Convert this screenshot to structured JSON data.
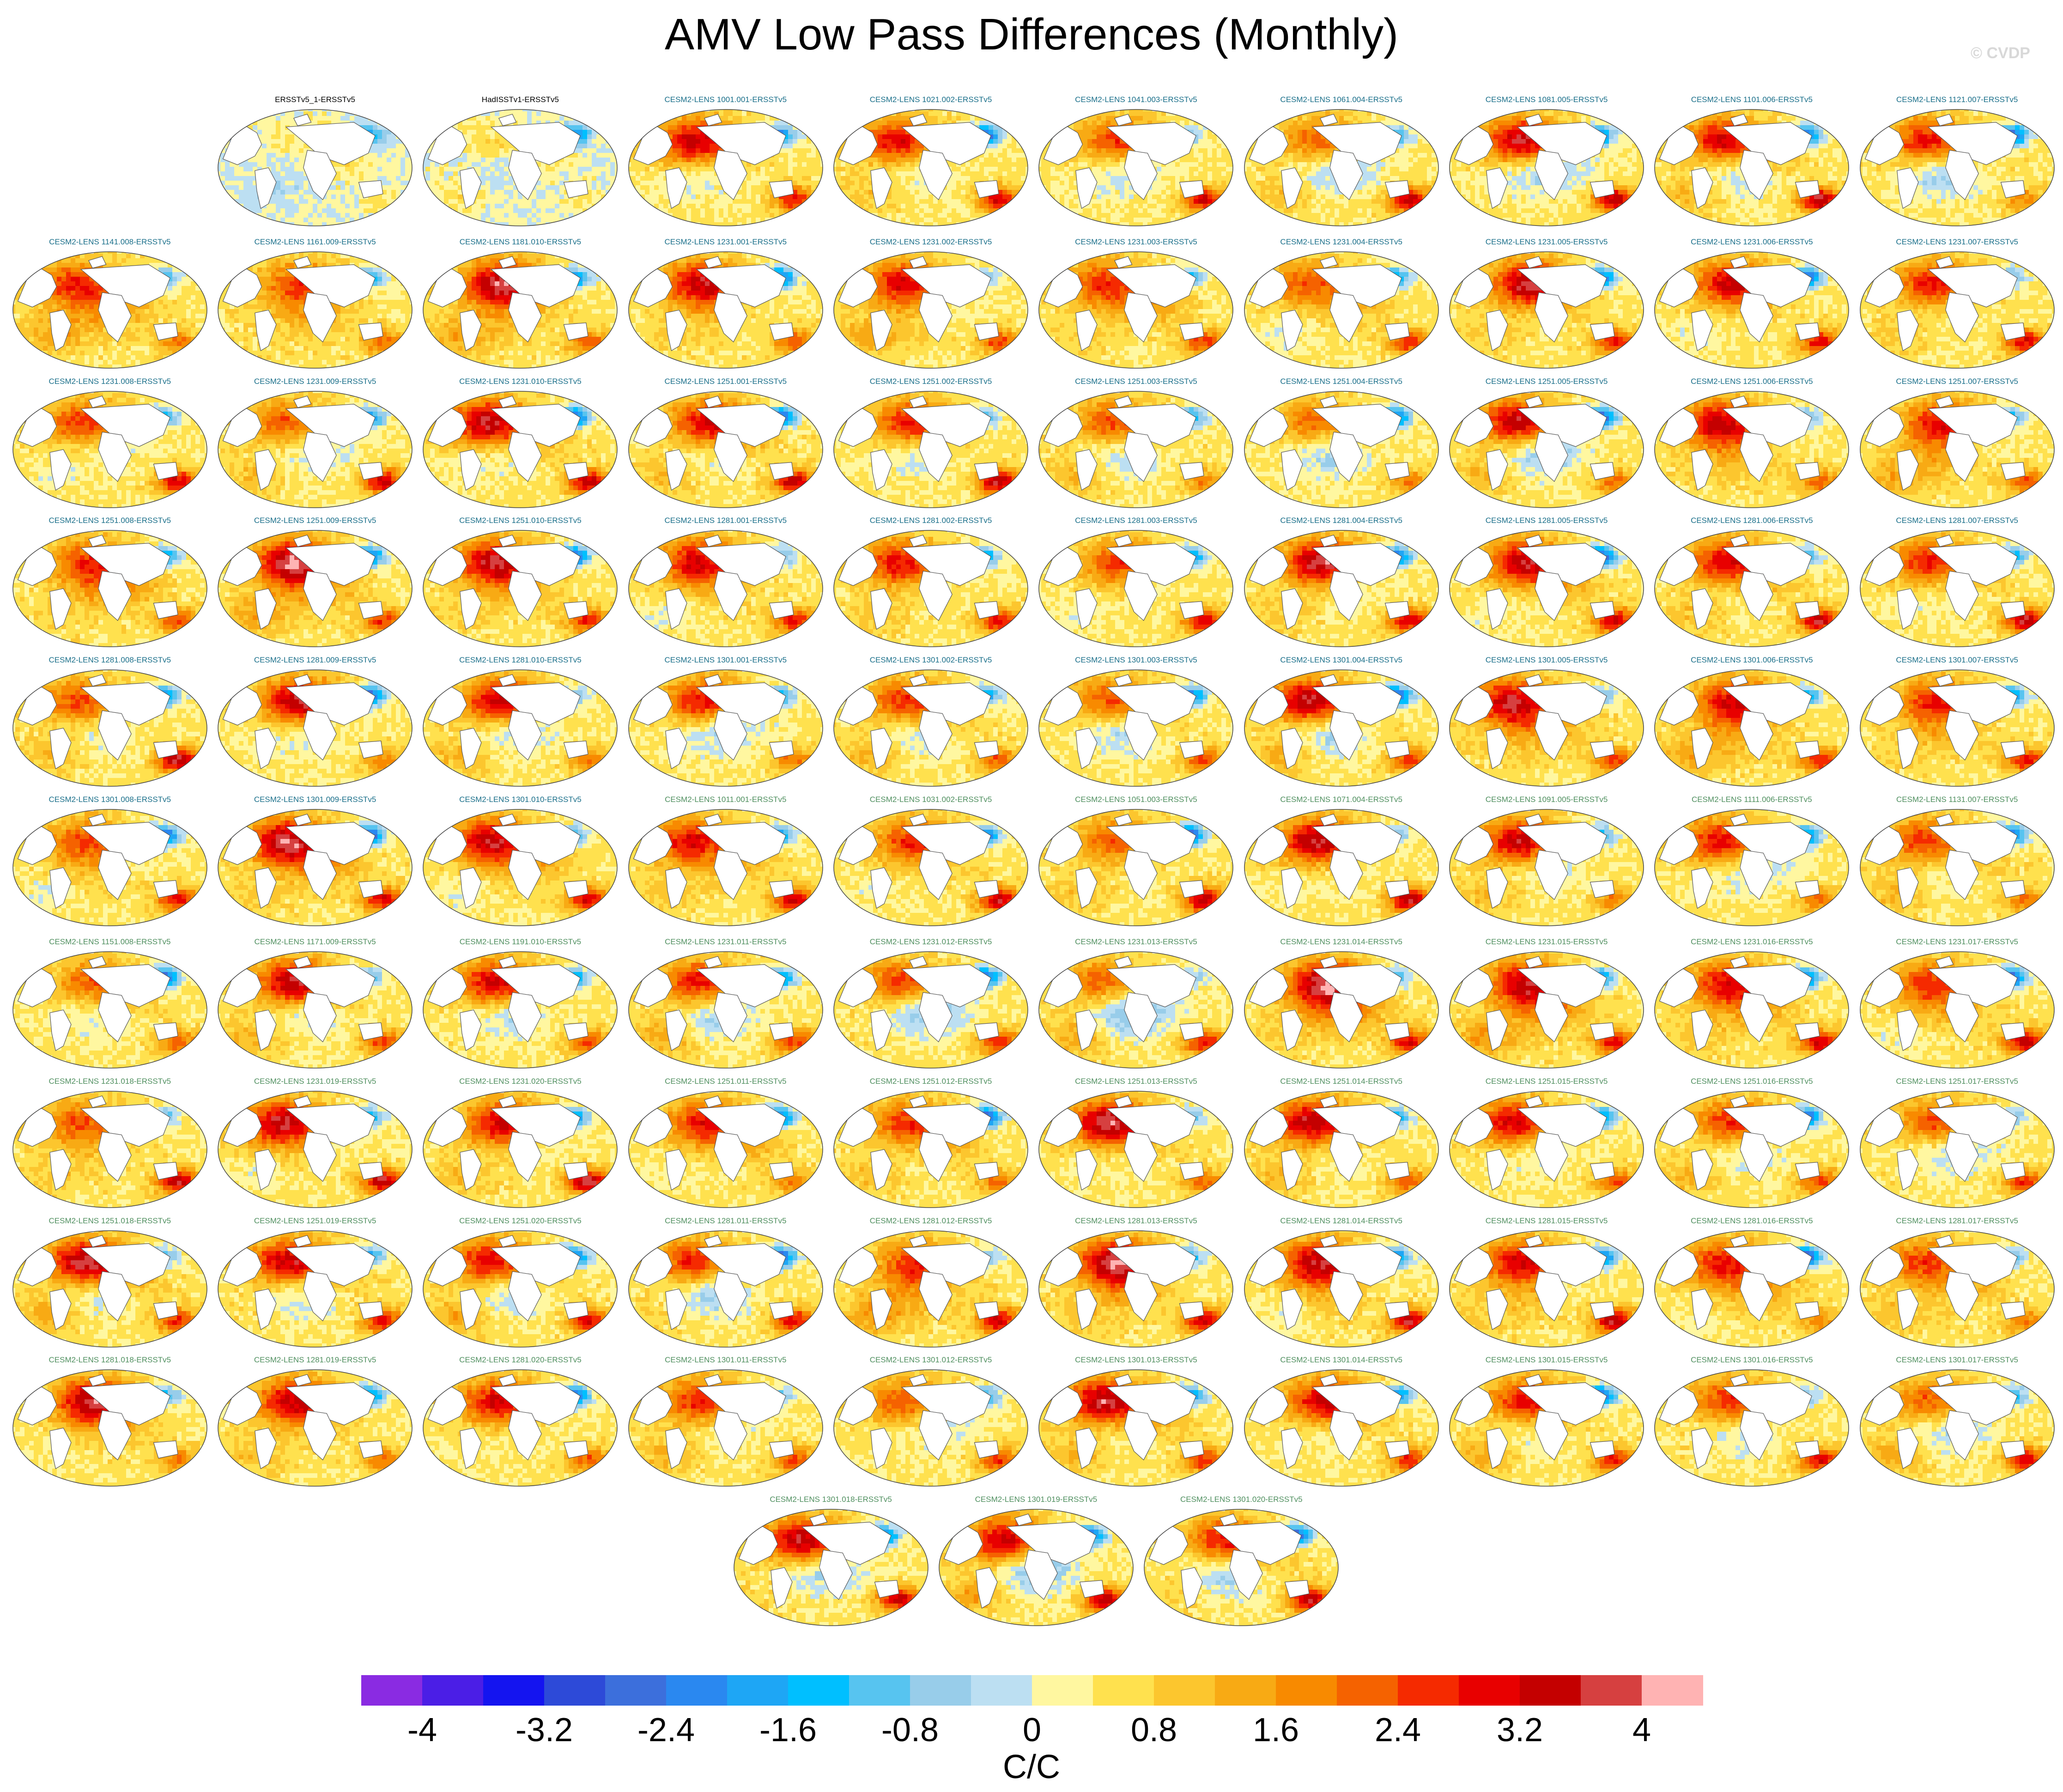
{
  "title": "AMV Low Pass Differences (Monthly)",
  "watermark": "© CVDP",
  "chart_data": {
    "type": "heatmap",
    "title": "AMV Low Pass Differences (Monthly)",
    "projection": "robinson",
    "label_colors": {
      "observation": "#000000",
      "cesm2_lens_set_a": "#1a6f8a",
      "cesm2_lens_set_b": "#4f8f5f"
    },
    "panels": [
      {
        "label": "ERSSTv5_1-ERSSTv5",
        "group": "observation"
      },
      {
        "label": "HadISSTv1-ERSSTv5",
        "group": "observation"
      },
      {
        "label": "CESM2-LENS 1001.001-ERSSTv5",
        "group": "cesm2_lens_set_a"
      },
      {
        "label": "CESM2-LENS 1021.002-ERSSTv5",
        "group": "cesm2_lens_set_a"
      },
      {
        "label": "CESM2-LENS 1041.003-ERSSTv5",
        "group": "cesm2_lens_set_a"
      },
      {
        "label": "CESM2-LENS 1061.004-ERSSTv5",
        "group": "cesm2_lens_set_a"
      },
      {
        "label": "CESM2-LENS 1081.005-ERSSTv5",
        "group": "cesm2_lens_set_a"
      },
      {
        "label": "CESM2-LENS 1101.006-ERSSTv5",
        "group": "cesm2_lens_set_a"
      },
      {
        "label": "CESM2-LENS 1121.007-ERSSTv5",
        "group": "cesm2_lens_set_a"
      },
      {
        "label": "CESM2-LENS 1141.008-ERSSTv5",
        "group": "cesm2_lens_set_a"
      },
      {
        "label": "CESM2-LENS 1161.009-ERSSTv5",
        "group": "cesm2_lens_set_a"
      },
      {
        "label": "CESM2-LENS 1181.010-ERSSTv5",
        "group": "cesm2_lens_set_a"
      },
      {
        "label": "CESM2-LENS 1231.001-ERSSTv5",
        "group": "cesm2_lens_set_a"
      },
      {
        "label": "CESM2-LENS 1231.002-ERSSTv5",
        "group": "cesm2_lens_set_a"
      },
      {
        "label": "CESM2-LENS 1231.003-ERSSTv5",
        "group": "cesm2_lens_set_a"
      },
      {
        "label": "CESM2-LENS 1231.004-ERSSTv5",
        "group": "cesm2_lens_set_a"
      },
      {
        "label": "CESM2-LENS 1231.005-ERSSTv5",
        "group": "cesm2_lens_set_a"
      },
      {
        "label": "CESM2-LENS 1231.006-ERSSTv5",
        "group": "cesm2_lens_set_a"
      },
      {
        "label": "CESM2-LENS 1231.007-ERSSTv5",
        "group": "cesm2_lens_set_a"
      },
      {
        "label": "CESM2-LENS 1231.008-ERSSTv5",
        "group": "cesm2_lens_set_a"
      },
      {
        "label": "CESM2-LENS 1231.009-ERSSTv5",
        "group": "cesm2_lens_set_a"
      },
      {
        "label": "CESM2-LENS 1231.010-ERSSTv5",
        "group": "cesm2_lens_set_a"
      },
      {
        "label": "CESM2-LENS 1251.001-ERSSTv5",
        "group": "cesm2_lens_set_a"
      },
      {
        "label": "CESM2-LENS 1251.002-ERSSTv5",
        "group": "cesm2_lens_set_a"
      },
      {
        "label": "CESM2-LENS 1251.003-ERSSTv5",
        "group": "cesm2_lens_set_a"
      },
      {
        "label": "CESM2-LENS 1251.004-ERSSTv5",
        "group": "cesm2_lens_set_a"
      },
      {
        "label": "CESM2-LENS 1251.005-ERSSTv5",
        "group": "cesm2_lens_set_a"
      },
      {
        "label": "CESM2-LENS 1251.006-ERSSTv5",
        "group": "cesm2_lens_set_a"
      },
      {
        "label": "CESM2-LENS 1251.007-ERSSTv5",
        "group": "cesm2_lens_set_a"
      },
      {
        "label": "CESM2-LENS 1251.008-ERSSTv5",
        "group": "cesm2_lens_set_a"
      },
      {
        "label": "CESM2-LENS 1251.009-ERSSTv5",
        "group": "cesm2_lens_set_a"
      },
      {
        "label": "CESM2-LENS 1251.010-ERSSTv5",
        "group": "cesm2_lens_set_a"
      },
      {
        "label": "CESM2-LENS 1281.001-ERSSTv5",
        "group": "cesm2_lens_set_a"
      },
      {
        "label": "CESM2-LENS 1281.002-ERSSTv5",
        "group": "cesm2_lens_set_a"
      },
      {
        "label": "CESM2-LENS 1281.003-ERSSTv5",
        "group": "cesm2_lens_set_a"
      },
      {
        "label": "CESM2-LENS 1281.004-ERSSTv5",
        "group": "cesm2_lens_set_a"
      },
      {
        "label": "CESM2-LENS 1281.005-ERSSTv5",
        "group": "cesm2_lens_set_a"
      },
      {
        "label": "CESM2-LENS 1281.006-ERSSTv5",
        "group": "cesm2_lens_set_a"
      },
      {
        "label": "CESM2-LENS 1281.007-ERSSTv5",
        "group": "cesm2_lens_set_a"
      },
      {
        "label": "CESM2-LENS 1281.008-ERSSTv5",
        "group": "cesm2_lens_set_a"
      },
      {
        "label": "CESM2-LENS 1281.009-ERSSTv5",
        "group": "cesm2_lens_set_a"
      },
      {
        "label": "CESM2-LENS 1281.010-ERSSTv5",
        "group": "cesm2_lens_set_a"
      },
      {
        "label": "CESM2-LENS 1301.001-ERSSTv5",
        "group": "cesm2_lens_set_a"
      },
      {
        "label": "CESM2-LENS 1301.002-ERSSTv5",
        "group": "cesm2_lens_set_a"
      },
      {
        "label": "CESM2-LENS 1301.003-ERSSTv5",
        "group": "cesm2_lens_set_a"
      },
      {
        "label": "CESM2-LENS 1301.004-ERSSTv5",
        "group": "cesm2_lens_set_a"
      },
      {
        "label": "CESM2-LENS 1301.005-ERSSTv5",
        "group": "cesm2_lens_set_a"
      },
      {
        "label": "CESM2-LENS 1301.006-ERSSTv5",
        "group": "cesm2_lens_set_a"
      },
      {
        "label": "CESM2-LENS 1301.007-ERSSTv5",
        "group": "cesm2_lens_set_a"
      },
      {
        "label": "CESM2-LENS 1301.008-ERSSTv5",
        "group": "cesm2_lens_set_a"
      },
      {
        "label": "CESM2-LENS 1301.009-ERSSTv5",
        "group": "cesm2_lens_set_a"
      },
      {
        "label": "CESM2-LENS 1301.010-ERSSTv5",
        "group": "cesm2_lens_set_a"
      },
      {
        "label": "CESM2-LENS 1011.001-ERSSTv5",
        "group": "cesm2_lens_set_b"
      },
      {
        "label": "CESM2-LENS 1031.002-ERSSTv5",
        "group": "cesm2_lens_set_b"
      },
      {
        "label": "CESM2-LENS 1051.003-ERSSTv5",
        "group": "cesm2_lens_set_b"
      },
      {
        "label": "CESM2-LENS 1071.004-ERSSTv5",
        "group": "cesm2_lens_set_b"
      },
      {
        "label": "CESM2-LENS 1091.005-ERSSTv5",
        "group": "cesm2_lens_set_b"
      },
      {
        "label": "CESM2-LENS 1111.006-ERSSTv5",
        "group": "cesm2_lens_set_b"
      },
      {
        "label": "CESM2-LENS 1131.007-ERSSTv5",
        "group": "cesm2_lens_set_b"
      },
      {
        "label": "CESM2-LENS 1151.008-ERSSTv5",
        "group": "cesm2_lens_set_b"
      },
      {
        "label": "CESM2-LENS 1171.009-ERSSTv5",
        "group": "cesm2_lens_set_b"
      },
      {
        "label": "CESM2-LENS 1191.010-ERSSTv5",
        "group": "cesm2_lens_set_b"
      },
      {
        "label": "CESM2-LENS 1231.011-ERSSTv5",
        "group": "cesm2_lens_set_b"
      },
      {
        "label": "CESM2-LENS 1231.012-ERSSTv5",
        "group": "cesm2_lens_set_b"
      },
      {
        "label": "CESM2-LENS 1231.013-ERSSTv5",
        "group": "cesm2_lens_set_b"
      },
      {
        "label": "CESM2-LENS 1231.014-ERSSTv5",
        "group": "cesm2_lens_set_b"
      },
      {
        "label": "CESM2-LENS 1231.015-ERSSTv5",
        "group": "cesm2_lens_set_b"
      },
      {
        "label": "CESM2-LENS 1231.016-ERSSTv5",
        "group": "cesm2_lens_set_b"
      },
      {
        "label": "CESM2-LENS 1231.017-ERSSTv5",
        "group": "cesm2_lens_set_b"
      },
      {
        "label": "CESM2-LENS 1231.018-ERSSTv5",
        "group": "cesm2_lens_set_b"
      },
      {
        "label": "CESM2-LENS 1231.019-ERSSTv5",
        "group": "cesm2_lens_set_b"
      },
      {
        "label": "CESM2-LENS 1231.020-ERSSTv5",
        "group": "cesm2_lens_set_b"
      },
      {
        "label": "CESM2-LENS 1251.011-ERSSTv5",
        "group": "cesm2_lens_set_b"
      },
      {
        "label": "CESM2-LENS 1251.012-ERSSTv5",
        "group": "cesm2_lens_set_b"
      },
      {
        "label": "CESM2-LENS 1251.013-ERSSTv5",
        "group": "cesm2_lens_set_b"
      },
      {
        "label": "CESM2-LENS 1251.014-ERSSTv5",
        "group": "cesm2_lens_set_b"
      },
      {
        "label": "CESM2-LENS 1251.015-ERSSTv5",
        "group": "cesm2_lens_set_b"
      },
      {
        "label": "CESM2-LENS 1251.016-ERSSTv5",
        "group": "cesm2_lens_set_b"
      },
      {
        "label": "CESM2-LENS 1251.017-ERSSTv5",
        "group": "cesm2_lens_set_b"
      },
      {
        "label": "CESM2-LENS 1251.018-ERSSTv5",
        "group": "cesm2_lens_set_b"
      },
      {
        "label": "CESM2-LENS 1251.019-ERSSTv5",
        "group": "cesm2_lens_set_b"
      },
      {
        "label": "CESM2-LENS 1251.020-ERSSTv5",
        "group": "cesm2_lens_set_b"
      },
      {
        "label": "CESM2-LENS 1281.011-ERSSTv5",
        "group": "cesm2_lens_set_b"
      },
      {
        "label": "CESM2-LENS 1281.012-ERSSTv5",
        "group": "cesm2_lens_set_b"
      },
      {
        "label": "CESM2-LENS 1281.013-ERSSTv5",
        "group": "cesm2_lens_set_b"
      },
      {
        "label": "CESM2-LENS 1281.014-ERSSTv5",
        "group": "cesm2_lens_set_b"
      },
      {
        "label": "CESM2-LENS 1281.015-ERSSTv5",
        "group": "cesm2_lens_set_b"
      },
      {
        "label": "CESM2-LENS 1281.016-ERSSTv5",
        "group": "cesm2_lens_set_b"
      },
      {
        "label": "CESM2-LENS 1281.017-ERSSTv5",
        "group": "cesm2_lens_set_b"
      },
      {
        "label": "CESM2-LENS 1281.018-ERSSTv5",
        "group": "cesm2_lens_set_b"
      },
      {
        "label": "CESM2-LENS 1281.019-ERSSTv5",
        "group": "cesm2_lens_set_b"
      },
      {
        "label": "CESM2-LENS 1281.020-ERSSTv5",
        "group": "cesm2_lens_set_b"
      },
      {
        "label": "CESM2-LENS 1301.011-ERSSTv5",
        "group": "cesm2_lens_set_b"
      },
      {
        "label": "CESM2-LENS 1301.012-ERSSTv5",
        "group": "cesm2_lens_set_b"
      },
      {
        "label": "CESM2-LENS 1301.013-ERSSTv5",
        "group": "cesm2_lens_set_b"
      },
      {
        "label": "CESM2-LENS 1301.014-ERSSTv5",
        "group": "cesm2_lens_set_b"
      },
      {
        "label": "CESM2-LENS 1301.015-ERSSTv5",
        "group": "cesm2_lens_set_b"
      },
      {
        "label": "CESM2-LENS 1301.016-ERSSTv5",
        "group": "cesm2_lens_set_b"
      },
      {
        "label": "CESM2-LENS 1301.017-ERSSTv5",
        "group": "cesm2_lens_set_b"
      },
      {
        "label": "CESM2-LENS 1301.018-ERSSTv5",
        "group": "cesm2_lens_set_b"
      },
      {
        "label": "CESM2-LENS 1301.019-ERSSTv5",
        "group": "cesm2_lens_set_b"
      },
      {
        "label": "CESM2-LENS 1301.020-ERSSTv5",
        "group": "cesm2_lens_set_b"
      }
    ],
    "colorbar": {
      "unit": "C/C",
      "levels": [
        -4.4,
        -4,
        -3.6,
        -3.2,
        -2.8,
        -2.4,
        -2,
        -1.6,
        -1.2,
        -0.8,
        -0.4,
        0,
        0.4,
        0.8,
        1.2,
        1.6,
        2,
        2.4,
        2.8,
        3.2,
        3.6,
        4,
        4.4
      ],
      "tick_labels": [
        "-4",
        "-3.2",
        "-2.4",
        "-1.6",
        "-0.8",
        "0",
        "0.8",
        "1.6",
        "2.4",
        "3.2",
        "4"
      ],
      "tick_values": [
        -4,
        -3.2,
        -2.4,
        -1.6,
        -0.8,
        0,
        0.8,
        1.6,
        2.4,
        3.2,
        4
      ],
      "colors": [
        "#8a2be2",
        "#4b1ee6",
        "#1414f0",
        "#2d4ad8",
        "#3c6fdc",
        "#2a88f0",
        "#1ea6f5",
        "#00bfff",
        "#57c4f0",
        "#98cdea",
        "#bcdff2",
        "#fff7a0",
        "#ffe14e",
        "#fcc62e",
        "#f8aa14",
        "#f88a00",
        "#f56200",
        "#f52a00",
        "#e80000",
        "#c40000",
        "#d64040",
        "#ffb3b3"
      ]
    }
  }
}
